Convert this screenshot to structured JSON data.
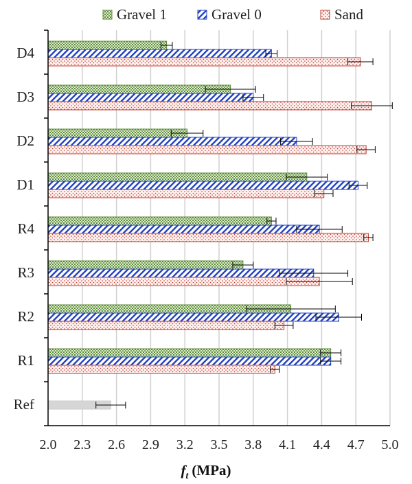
{
  "chart_data": {
    "type": "bar",
    "orientation": "horizontal",
    "title": "",
    "xlabel": {
      "symbol": "f",
      "subscript": "t",
      "unit": "(MPa)"
    },
    "ylabel": "",
    "xlim": [
      2.0,
      5.0
    ],
    "xticks": [
      "2.0",
      "2.3",
      "2.6",
      "2.9",
      "3.2",
      "3.5",
      "3.8",
      "4.1",
      "4.4",
      "4.7",
      "5.0"
    ],
    "grid": "vertical",
    "legend_position": "top",
    "categories": [
      "D4",
      "D3",
      "D2",
      "D1",
      "R4",
      "R3",
      "R2",
      "R1",
      "Ref"
    ],
    "series": [
      {
        "name": "Gravel 1",
        "color": "#5a8a3a",
        "pattern": "dots-green",
        "values": [
          3.04,
          3.6,
          3.22,
          4.27,
          3.96,
          3.71,
          4.13,
          4.48,
          null
        ],
        "errors": [
          0.05,
          0.22,
          0.14,
          0.18,
          0.04,
          0.09,
          0.39,
          0.09,
          null
        ]
      },
      {
        "name": "Gravel 0",
        "color": "#1f3fbf",
        "pattern": "diagonal-blue",
        "values": [
          3.96,
          3.8,
          4.18,
          4.72,
          4.38,
          4.33,
          4.55,
          4.48,
          null
        ],
        "errors": [
          0.05,
          0.09,
          0.14,
          0.08,
          0.2,
          0.3,
          0.2,
          0.09,
          null
        ]
      },
      {
        "name": "Sand",
        "color": "#c0392b",
        "pattern": "dots-red",
        "values": [
          4.74,
          4.84,
          4.79,
          4.42,
          4.81,
          4.38,
          4.07,
          3.99,
          null
        ],
        "errors": [
          0.11,
          0.18,
          0.08,
          0.08,
          0.04,
          0.29,
          0.08,
          0.04,
          null
        ]
      },
      {
        "name": "",
        "color": "#cccccc",
        "pattern": "solid-grey",
        "values": [
          null,
          null,
          null,
          null,
          null,
          null,
          null,
          null,
          2.55
        ],
        "errors": [
          null,
          null,
          null,
          null,
          null,
          null,
          null,
          null,
          0.13
        ]
      }
    ]
  }
}
